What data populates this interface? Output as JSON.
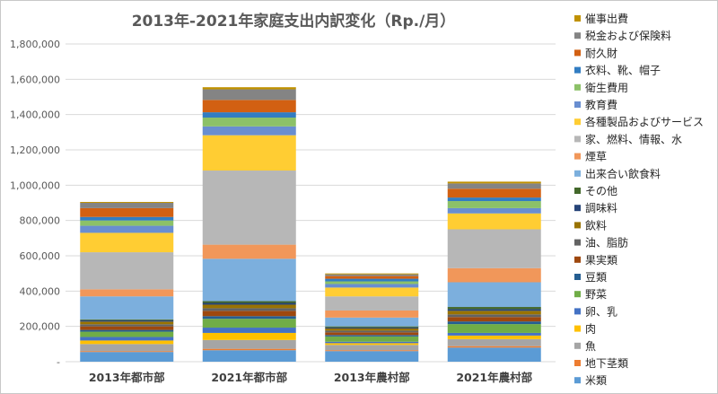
{
  "chart_data": {
    "type": "bar",
    "stacked": true,
    "title": "2013年-2021年家庭支出内訳変化（Rp./月）",
    "xlabel": "",
    "ylabel": "",
    "ylim": [
      0,
      1800000
    ],
    "yticks": [
      "-",
      "200,000",
      "400,000",
      "600,000",
      "800,000",
      "1,000,000",
      "1,200,000",
      "1,400,000",
      "1,600,000",
      "1,800,000"
    ],
    "grid": true,
    "legend_position": "right",
    "categories": [
      "2013年都市部",
      "2021年都市部",
      "2013年農村部",
      "2021年農村部"
    ],
    "series": [
      {
        "name": "米類",
        "color": "#5B9BD5",
        "values": [
          55000,
          65000,
          60000,
          80000
        ]
      },
      {
        "name": "地下茎類",
        "color": "#ED7D31",
        "values": [
          5000,
          8000,
          5000,
          8000
        ]
      },
      {
        "name": "魚",
        "color": "#A5A5A5",
        "values": [
          40000,
          50000,
          30000,
          40000
        ]
      },
      {
        "name": "肉",
        "color": "#FFC000",
        "values": [
          20000,
          40000,
          10000,
          20000
        ]
      },
      {
        "name": "卵、乳",
        "color": "#4472C4",
        "values": [
          20000,
          30000,
          8000,
          15000
        ]
      },
      {
        "name": "野菜",
        "color": "#70AD47",
        "values": [
          30000,
          50000,
          30000,
          50000
        ]
      },
      {
        "name": "豆類",
        "color": "#255E91",
        "values": [
          10000,
          15000,
          8000,
          15000
        ]
      },
      {
        "name": "果実類",
        "color": "#9E480E",
        "values": [
          20000,
          30000,
          15000,
          25000
        ]
      },
      {
        "name": "油、脂肪",
        "color": "#636363",
        "values": [
          12000,
          15000,
          10000,
          15000
        ]
      },
      {
        "name": "飲料",
        "color": "#997300",
        "values": [
          15000,
          20000,
          12000,
          20000
        ]
      },
      {
        "name": "調味料",
        "color": "#264478",
        "values": [
          8000,
          10000,
          6000,
          10000
        ]
      },
      {
        "name": "その他",
        "color": "#43682B",
        "values": [
          5000,
          10000,
          6000,
          12000
        ]
      },
      {
        "name": "出来合い飲食料",
        "color": "#7CAFDD",
        "values": [
          130000,
          240000,
          50000,
          140000
        ]
      },
      {
        "name": "煙草",
        "color": "#F1975A",
        "values": [
          40000,
          80000,
          40000,
          80000
        ]
      },
      {
        "name": "家、燃料、情報、水",
        "color": "#B7B7B7",
        "values": [
          210000,
          420000,
          80000,
          220000
        ]
      },
      {
        "name": "各種製品およびサービス",
        "color": "#FFCD33",
        "values": [
          110000,
          200000,
          50000,
          90000
        ]
      },
      {
        "name": "教育費",
        "color": "#698ED0",
        "values": [
          40000,
          50000,
          20000,
          30000
        ]
      },
      {
        "name": "衛生費用",
        "color": "#8CC168",
        "values": [
          30000,
          50000,
          15000,
          40000
        ]
      },
      {
        "name": "衣料、靴、帽子",
        "color": "#327DC2",
        "values": [
          20000,
          30000,
          15000,
          20000
        ]
      },
      {
        "name": "耐久財",
        "color": "#D26012",
        "values": [
          50000,
          70000,
          15000,
          50000
        ]
      },
      {
        "name": "税金および保険料",
        "color": "#848484",
        "values": [
          30000,
          60000,
          10000,
          30000
        ]
      },
      {
        "name": "催事出費",
        "color": "#C09100",
        "values": [
          5000,
          12000,
          5000,
          10000
        ]
      }
    ]
  }
}
